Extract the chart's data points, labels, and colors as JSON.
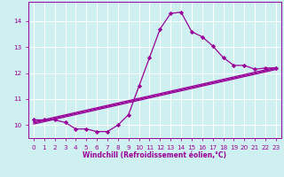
{
  "xlabel": "Windchill (Refroidissement éolien,°C)",
  "bg_color": "#cff0f0",
  "grid_color": "#ffffff",
  "line_color": "#990099",
  "marker": "D",
  "markersize": 2.2,
  "linewidth": 0.9,
  "xlim": [
    -0.5,
    23.5
  ],
  "ylim": [
    9.5,
    14.75
  ],
  "yticks": [
    10,
    11,
    12,
    13,
    14
  ],
  "xticks": [
    0,
    1,
    2,
    3,
    4,
    5,
    6,
    7,
    8,
    9,
    10,
    11,
    12,
    13,
    14,
    15,
    16,
    17,
    18,
    19,
    20,
    21,
    22,
    23
  ],
  "main_series": [
    10.2,
    10.2,
    10.2,
    10.1,
    9.85,
    9.85,
    9.75,
    9.75,
    10.0,
    10.4,
    11.5,
    12.6,
    13.7,
    14.3,
    14.35,
    13.6,
    13.4,
    13.05,
    12.6,
    12.3,
    12.3,
    12.15,
    12.2,
    12.2
  ],
  "trend_lines": [
    [
      [
        0,
        23
      ],
      [
        10.12,
        12.22
      ]
    ],
    [
      [
        0,
        23
      ],
      [
        10.08,
        12.18
      ]
    ],
    [
      [
        0,
        23
      ],
      [
        10.04,
        12.14
      ]
    ]
  ]
}
